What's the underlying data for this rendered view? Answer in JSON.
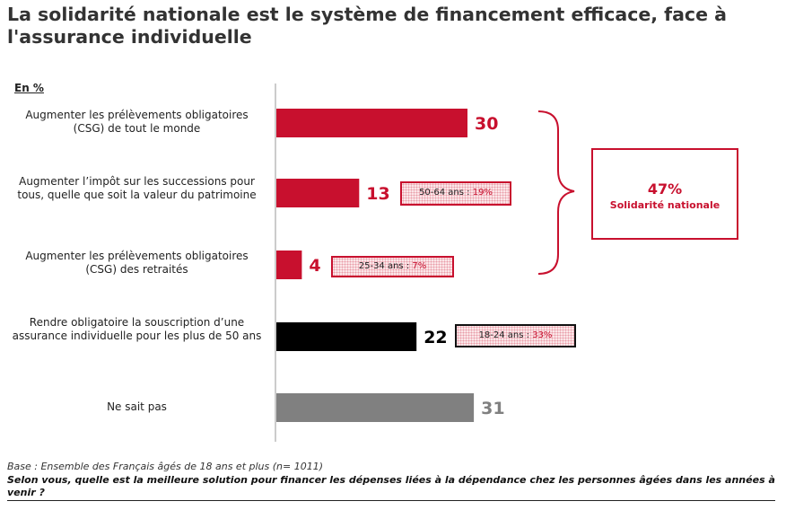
{
  "title": "La solidarité nationale est le système de financement efficace, face à l'assurance individuelle",
  "unit_label": "En %",
  "chart_data": {
    "type": "bar",
    "orientation": "horizontal",
    "categories": [
      "Augmenter les prélèvements obligatoires (CSG) de tout le monde",
      "Augmenter l’impôt sur les successions pour tous, quelle que soit la valeur du patrimoine",
      "Augmenter les prélèvements obligatoires (CSG) des retraités",
      "Rendre obligatoire la souscription d’une assurance individuelle pour les plus de 50 ans",
      "Ne sait pas"
    ],
    "values": [
      30,
      13,
      4,
      22,
      31
    ],
    "value_labels": [
      "30",
      "13",
      "4",
      "22",
      "31"
    ],
    "bar_colors": [
      "#c8102e",
      "#c8102e",
      "#c8102e",
      "#000000",
      "#808080"
    ],
    "xlim": [
      0,
      45
    ],
    "subgroups": [
      {
        "bar_index": 1,
        "label": "50-64 ans : ",
        "pct": "19%",
        "border": "#c8102e"
      },
      {
        "bar_index": 2,
        "label": "25-34 ans : ",
        "pct": "7%",
        "border": "#c8102e"
      },
      {
        "bar_index": 3,
        "label": "18-24 ans : ",
        "pct": "33%",
        "border": "#111111"
      }
    ],
    "group_summary": {
      "value": "47%",
      "label": "Solidarité nationale",
      "color": "#c8102e"
    }
  },
  "footnote": {
    "base": "Base : Ensemble des Français âgés de 18 ans et plus (n= 1011)",
    "question": "Selon vous, quelle est la meilleure solution pour financer les dépenses liées à la dépendance chez les personnes âgées dans les années à venir ?"
  }
}
